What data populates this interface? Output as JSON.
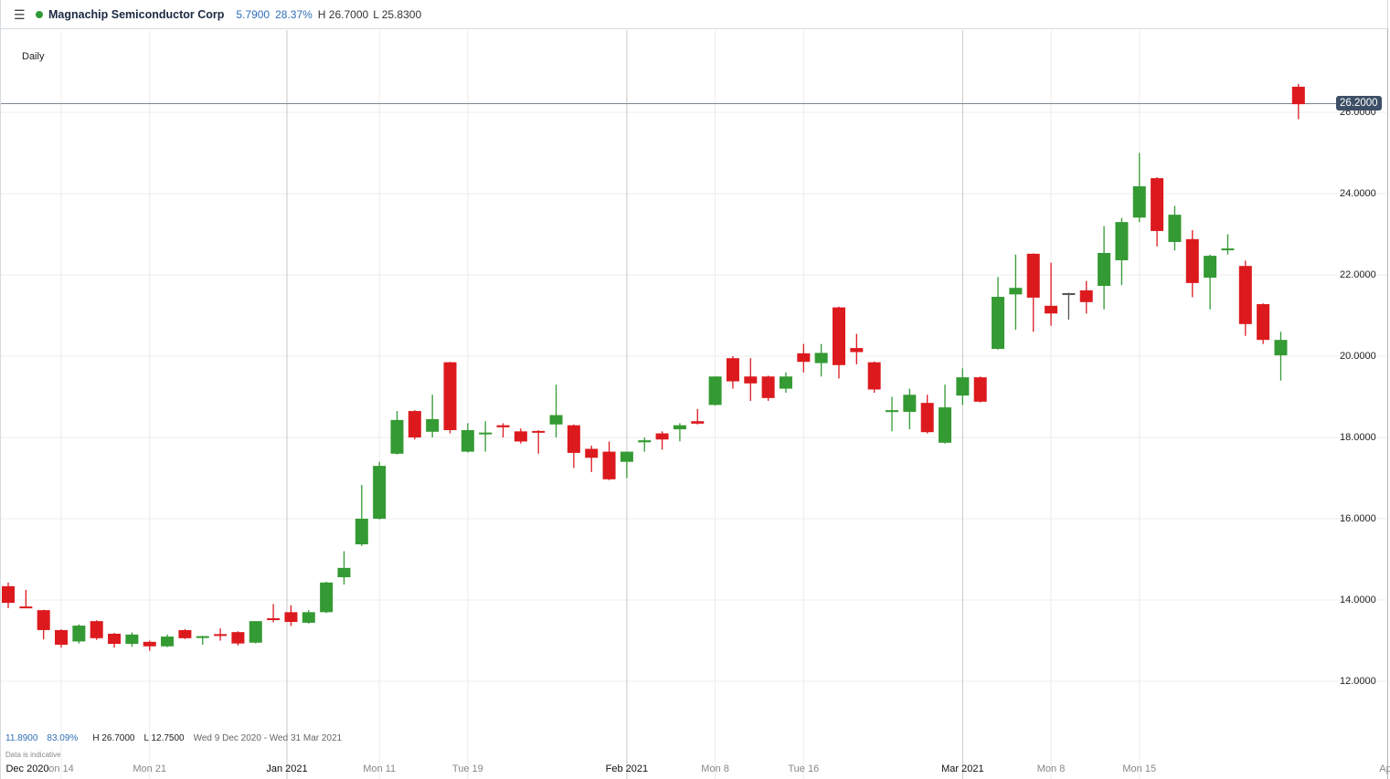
{
  "header": {
    "menu_icon": "hamburger-menu-icon",
    "status_color": "#2e9a35",
    "instrument": "Magnachip Semiconductor Corp",
    "change": "5.7900",
    "change_pct": "28.37%",
    "high": "H 26.7000",
    "low": "L 25.8300"
  },
  "period_label": "Daily",
  "summary": {
    "change": "11.8900",
    "change_pct": "83.09%",
    "high": "H 26.7000",
    "low": "L 12.7500",
    "range": "Wed 9 Dec 2020 - Wed 31 Mar 2021",
    "note": "Data is indicative"
  },
  "price_tag": "26.2000",
  "chart_data": {
    "type": "candlestick",
    "title": "",
    "ylim": [
      10.8,
      28.0
    ],
    "y_ticks": [
      "12.0000",
      "14.0000",
      "16.0000",
      "18.0000",
      "20.0000",
      "22.0000",
      "24.0000",
      "26.0000"
    ],
    "x_ticks": [
      "Dec 2020",
      "on 14",
      "Mon 21",
      "Jan 2021",
      "Mon 11",
      "Tue 19",
      "Feb 2021",
      "Mon 8",
      "Tue 16",
      "Mar 2021",
      "Mon 8",
      "Mon 15",
      "Ap"
    ],
    "grid": true,
    "colors": {
      "up": "#349a33",
      "down": "#dc1a1e",
      "flat": "#555555"
    },
    "candles": [
      {
        "o": 14.34,
        "h": 14.43,
        "l": 13.8,
        "c": 13.93
      },
      {
        "o": 13.84,
        "h": 14.25,
        "l": 13.8,
        "c": 13.82
      },
      {
        "o": 13.75,
        "h": 13.76,
        "l": 13.03,
        "c": 13.26
      },
      {
        "o": 13.26,
        "h": 13.28,
        "l": 12.83,
        "c": 12.9
      },
      {
        "o": 12.98,
        "h": 13.4,
        "l": 12.93,
        "c": 13.37
      },
      {
        "o": 13.48,
        "h": 13.5,
        "l": 13.02,
        "c": 13.06
      },
      {
        "o": 13.17,
        "h": 13.19,
        "l": 12.83,
        "c": 12.92
      },
      {
        "o": 12.92,
        "h": 13.2,
        "l": 12.85,
        "c": 13.15
      },
      {
        "o": 12.97,
        "h": 13.0,
        "l": 12.75,
        "c": 12.86
      },
      {
        "o": 12.86,
        "h": 13.15,
        "l": 12.84,
        "c": 13.1
      },
      {
        "o": 13.26,
        "h": 13.28,
        "l": 13.04,
        "c": 13.06
      },
      {
        "o": 13.08,
        "h": 13.12,
        "l": 12.9,
        "c": 13.11
      },
      {
        "o": 13.16,
        "h": 13.3,
        "l": 13.0,
        "c": 13.12
      },
      {
        "o": 13.21,
        "h": 13.23,
        "l": 12.88,
        "c": 12.93
      },
      {
        "o": 12.95,
        "h": 13.48,
        "l": 12.93,
        "c": 13.48
      },
      {
        "o": 13.55,
        "h": 13.9,
        "l": 13.45,
        "c": 13.52
      },
      {
        "o": 13.7,
        "h": 13.87,
        "l": 13.36,
        "c": 13.46
      },
      {
        "o": 13.44,
        "h": 13.75,
        "l": 13.42,
        "c": 13.7
      },
      {
        "o": 13.7,
        "h": 14.45,
        "l": 13.68,
        "c": 14.43
      },
      {
        "o": 14.56,
        "h": 15.2,
        "l": 14.38,
        "c": 14.79
      },
      {
        "o": 15.37,
        "h": 16.83,
        "l": 15.33,
        "c": 16.0
      },
      {
        "o": 16.0,
        "h": 17.4,
        "l": 15.98,
        "c": 17.3
      },
      {
        "o": 17.6,
        "h": 18.65,
        "l": 17.58,
        "c": 18.43
      },
      {
        "o": 18.65,
        "h": 18.67,
        "l": 17.95,
        "c": 18.0
      },
      {
        "o": 18.14,
        "h": 19.05,
        "l": 18.0,
        "c": 18.45
      },
      {
        "o": 19.85,
        "h": 19.86,
        "l": 18.1,
        "c": 18.18
      },
      {
        "o": 17.65,
        "h": 18.35,
        "l": 17.63,
        "c": 18.18
      },
      {
        "o": 18.1,
        "h": 18.4,
        "l": 17.65,
        "c": 18.12
      },
      {
        "o": 18.3,
        "h": 18.35,
        "l": 18.0,
        "c": 18.25
      },
      {
        "o": 18.15,
        "h": 18.22,
        "l": 17.85,
        "c": 17.9
      },
      {
        "o": 18.16,
        "h": 18.18,
        "l": 17.6,
        "c": 18.12
      },
      {
        "o": 18.32,
        "h": 19.3,
        "l": 18.0,
        "c": 18.55
      },
      {
        "o": 18.3,
        "h": 18.32,
        "l": 17.25,
        "c": 17.62
      },
      {
        "o": 17.72,
        "h": 17.8,
        "l": 17.15,
        "c": 17.5
      },
      {
        "o": 17.65,
        "h": 17.9,
        "l": 16.95,
        "c": 16.97
      },
      {
        "o": 17.4,
        "h": 17.65,
        "l": 17.0,
        "c": 17.65
      },
      {
        "o": 17.88,
        "h": 18.0,
        "l": 17.65,
        "c": 17.93
      },
      {
        "o": 18.1,
        "h": 18.15,
        "l": 17.7,
        "c": 17.95
      },
      {
        "o": 18.2,
        "h": 18.35,
        "l": 17.9,
        "c": 18.3
      },
      {
        "o": 18.4,
        "h": 18.7,
        "l": 18.32,
        "c": 18.34
      },
      {
        "o": 18.8,
        "h": 19.5,
        "l": 18.78,
        "c": 19.5
      },
      {
        "o": 19.95,
        "h": 20.0,
        "l": 19.2,
        "c": 19.38
      },
      {
        "o": 19.5,
        "h": 19.95,
        "l": 18.9,
        "c": 19.33
      },
      {
        "o": 19.5,
        "h": 19.52,
        "l": 18.9,
        "c": 18.97
      },
      {
        "o": 19.2,
        "h": 19.6,
        "l": 19.1,
        "c": 19.5
      },
      {
        "o": 20.07,
        "h": 20.3,
        "l": 19.6,
        "c": 19.86
      },
      {
        "o": 19.83,
        "h": 20.3,
        "l": 19.5,
        "c": 20.08
      },
      {
        "o": 21.2,
        "h": 21.22,
        "l": 19.45,
        "c": 19.78
      },
      {
        "o": 20.2,
        "h": 20.55,
        "l": 19.8,
        "c": 20.1
      },
      {
        "o": 19.85,
        "h": 19.87,
        "l": 19.1,
        "c": 19.18
      },
      {
        "o": 18.63,
        "h": 19.0,
        "l": 18.15,
        "c": 18.67
      },
      {
        "o": 18.63,
        "h": 19.2,
        "l": 18.2,
        "c": 19.05
      },
      {
        "o": 18.85,
        "h": 19.05,
        "l": 18.1,
        "c": 18.13
      },
      {
        "o": 17.87,
        "h": 19.3,
        "l": 17.85,
        "c": 18.74
      },
      {
        "o": 19.03,
        "h": 19.7,
        "l": 18.8,
        "c": 19.48
      },
      {
        "o": 19.48,
        "h": 19.5,
        "l": 18.86,
        "c": 18.88
      },
      {
        "o": 20.18,
        "h": 21.95,
        "l": 20.16,
        "c": 21.46
      },
      {
        "o": 21.52,
        "h": 22.5,
        "l": 20.65,
        "c": 21.68
      },
      {
        "o": 22.52,
        "h": 22.53,
        "l": 20.6,
        "c": 21.44
      },
      {
        "o": 21.24,
        "h": 22.3,
        "l": 20.75,
        "c": 21.05
      },
      {
        "o": 21.55,
        "h": 21.56,
        "l": 20.9,
        "c": 21.55
      },
      {
        "o": 21.62,
        "h": 21.85,
        "l": 21.05,
        "c": 21.33
      },
      {
        "o": 21.73,
        "h": 23.2,
        "l": 21.15,
        "c": 22.54
      },
      {
        "o": 22.36,
        "h": 23.4,
        "l": 21.75,
        "c": 23.3
      },
      {
        "o": 23.41,
        "h": 25.0,
        "l": 23.3,
        "c": 24.18
      },
      {
        "o": 24.38,
        "h": 24.4,
        "l": 22.7,
        "c": 23.08
      },
      {
        "o": 22.81,
        "h": 23.7,
        "l": 22.6,
        "c": 23.48
      },
      {
        "o": 22.88,
        "h": 23.1,
        "l": 21.45,
        "c": 21.8
      },
      {
        "o": 21.93,
        "h": 22.5,
        "l": 21.15,
        "c": 22.47
      },
      {
        "o": 22.62,
        "h": 23.0,
        "l": 22.5,
        "c": 22.65
      },
      {
        "o": 22.22,
        "h": 22.35,
        "l": 20.5,
        "c": 20.79
      },
      {
        "o": 21.28,
        "h": 21.3,
        "l": 20.3,
        "c": 20.4
      },
      {
        "o": 20.02,
        "h": 20.6,
        "l": 19.4,
        "c": 20.4
      },
      {
        "o": 26.63,
        "h": 26.7,
        "l": 25.83,
        "c": 26.2
      }
    ]
  }
}
